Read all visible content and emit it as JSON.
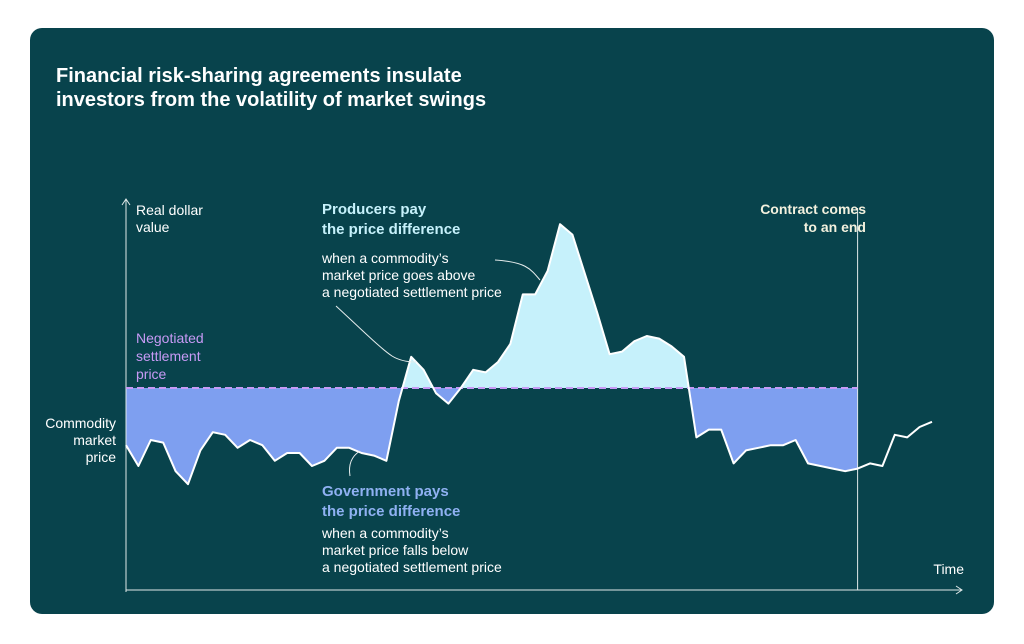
{
  "title": {
    "line1": "Financial risk-sharing agreements insulate",
    "line2": "investors from the volatility of market swings"
  },
  "axis": {
    "y_label_line1": "Real dollar",
    "y_label_line2": "value",
    "x_label": "Time"
  },
  "settlement_label": [
    "Negotiated",
    "settlement",
    "price"
  ],
  "market_price_label": [
    "Commodity",
    "market",
    "price"
  ],
  "producers": {
    "heading_line1": "Producers pay",
    "heading_line2": "the price difference",
    "desc_line1": "when a commodity’s",
    "desc_line2": "market price goes above",
    "desc_line3": "a negotiated settlement price"
  },
  "government": {
    "heading_line1": "Government pays",
    "heading_line2": "the price difference",
    "desc_line1": "when a commodity’s",
    "desc_line2": "market price falls below",
    "desc_line3": "a negotiated settlement price"
  },
  "contract_end": {
    "line1": "Contract comes",
    "line2": "to an end"
  },
  "colors": {
    "background": "#08434c",
    "above_fill": "#c6f1fb",
    "below_fill": "#7e9ff0",
    "settlement_line": "#c79af5",
    "price_line": "#ffffff"
  },
  "chart_data": {
    "type": "area",
    "settlement_value": 100,
    "contract_end_x": 59,
    "x": [
      0,
      1,
      2,
      3,
      4,
      5,
      6,
      7,
      8,
      9,
      10,
      11,
      12,
      13,
      14,
      15,
      16,
      17,
      18,
      19,
      20,
      21,
      22,
      23,
      24,
      25,
      26,
      27,
      28,
      29,
      30,
      31,
      32,
      33,
      34,
      35,
      36,
      37,
      38,
      39,
      40,
      41,
      42,
      43,
      44,
      45,
      46,
      47,
      48,
      49,
      50,
      51,
      52,
      53,
      54,
      55,
      56,
      57,
      58,
      59,
      60,
      61,
      62,
      63,
      64,
      65
    ],
    "values": [
      78,
      70,
      80,
      79,
      68,
      63,
      76,
      83,
      82,
      77,
      80,
      78,
      72,
      75,
      75,
      70,
      72,
      77,
      77,
      75,
      74,
      72,
      95,
      112,
      107,
      98,
      94,
      100,
      107,
      106,
      110,
      117,
      136,
      136,
      145,
      163,
      159,
      144,
      129,
      113,
      114,
      118,
      120,
      119,
      116,
      112,
      81,
      84,
      84,
      71,
      76,
      77,
      78,
      78,
      80,
      71,
      70,
      69,
      68,
      69,
      71,
      70,
      82,
      81,
      85,
      87
    ]
  }
}
